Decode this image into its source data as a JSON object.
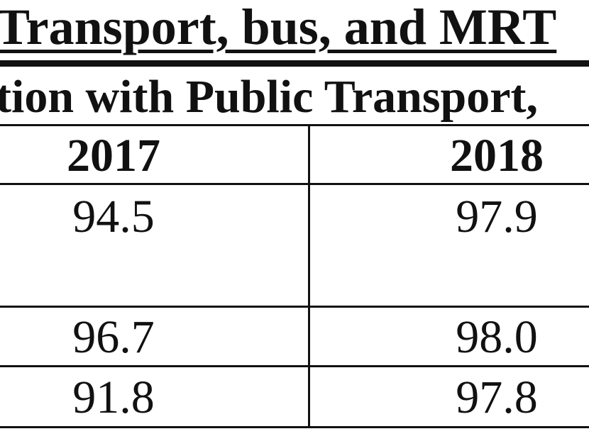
{
  "title": "Transport, bus, and MRT",
  "subtitle": "tion with Public Transport,",
  "columns": [
    "2017",
    "2018"
  ],
  "rows": [
    [
      "94.5",
      "97.9"
    ],
    [
      "96.7",
      "98.0"
    ],
    [
      "91.8",
      "97.8"
    ]
  ]
}
